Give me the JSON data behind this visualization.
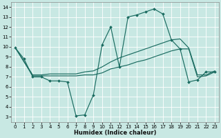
{
  "xlabel": "Humidex (Indice chaleur)",
  "bg_color": "#c8e8e3",
  "line_color": "#1a6b60",
  "xlim": [
    -0.5,
    23.5
  ],
  "ylim": [
    2.5,
    14.5
  ],
  "xticks": [
    0,
    1,
    2,
    3,
    4,
    5,
    6,
    7,
    8,
    9,
    10,
    11,
    12,
    13,
    14,
    15,
    16,
    17,
    18,
    19,
    20,
    21,
    22,
    23
  ],
  "yticks": [
    3,
    4,
    5,
    6,
    7,
    8,
    9,
    10,
    11,
    12,
    13,
    14
  ],
  "line1_x": [
    0,
    1,
    2,
    3,
    4,
    5,
    6,
    7,
    8,
    9,
    10,
    11,
    12,
    13,
    14,
    15,
    16,
    17,
    18,
    19,
    20,
    21,
    22,
    23
  ],
  "line1_y": [
    9.9,
    8.8,
    7.0,
    7.0,
    6.6,
    6.6,
    6.5,
    3.1,
    3.2,
    5.2,
    10.2,
    12.0,
    8.0,
    13.0,
    13.2,
    13.5,
    13.8,
    13.3,
    10.7,
    9.8,
    6.5,
    6.7,
    7.5,
    7.5
  ],
  "line2_x": [
    0,
    2,
    3,
    4,
    5,
    6,
    7,
    8,
    9,
    10,
    11,
    12,
    13,
    14,
    15,
    16,
    17,
    18,
    19,
    20,
    21,
    22,
    23
  ],
  "line2_y": [
    9.9,
    7.1,
    7.1,
    7.1,
    7.1,
    7.1,
    7.1,
    7.2,
    7.2,
    7.4,
    7.8,
    8.0,
    8.2,
    8.5,
    8.7,
    9.0,
    9.3,
    9.6,
    9.8,
    9.8,
    7.0,
    7.1,
    7.5
  ],
  "line3_x": [
    0,
    2,
    3,
    4,
    5,
    6,
    7,
    8,
    9,
    10,
    11,
    12,
    13,
    14,
    15,
    16,
    17,
    18,
    19,
    20,
    21,
    22,
    23
  ],
  "line3_y": [
    9.9,
    7.2,
    7.2,
    7.3,
    7.3,
    7.3,
    7.3,
    7.5,
    7.6,
    8.0,
    8.5,
    8.9,
    9.2,
    9.5,
    9.8,
    10.1,
    10.4,
    10.7,
    10.8,
    9.9,
    7.2,
    7.2,
    7.6
  ]
}
